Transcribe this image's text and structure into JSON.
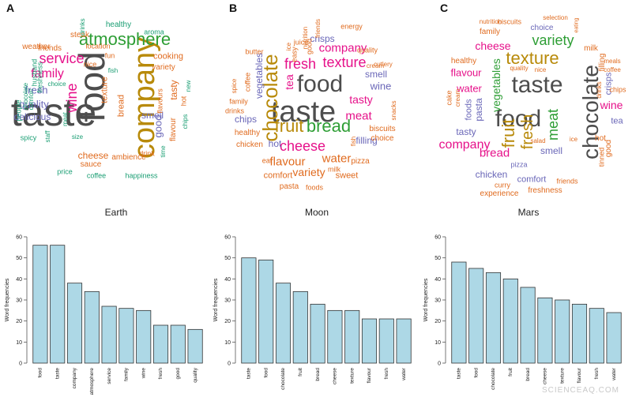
{
  "panel_letters": {
    "a": "A",
    "b": "B",
    "c": "C"
  },
  "planets": {
    "earth": "Earth",
    "moon": "Moon",
    "mars": "Mars"
  },
  "watermark": "SCIENCEAQ.COM",
  "colors": {
    "bar_fill": "#add8e6",
    "bar_stroke": "#333333",
    "green": "#2e9e35",
    "purple": "#6a67b8",
    "gray": "#4d4d4d",
    "pink": "#e6118a",
    "orange": "#e06b1f",
    "gold": "#b88a0a",
    "teal": "#1a9e73"
  },
  "clouds": {
    "earth": [
      {
        "t": "taste",
        "c": "gray"
      },
      {
        "t": "food",
        "c": "gray"
      },
      {
        "t": "company",
        "c": "gold"
      },
      {
        "t": "atmosphere",
        "c": "green"
      },
      {
        "t": "service",
        "c": "pink"
      },
      {
        "t": "family",
        "c": "pink"
      },
      {
        "t": "wine",
        "c": "pink"
      },
      {
        "t": "fresh",
        "c": "purple"
      },
      {
        "t": "quality",
        "c": "purple"
      },
      {
        "t": "delicious",
        "c": "purple"
      },
      {
        "t": "good",
        "c": "purple"
      },
      {
        "t": "smell",
        "c": "purple"
      },
      {
        "t": "tasty",
        "c": "orange"
      },
      {
        "t": "cheese",
        "c": "orange"
      },
      {
        "t": "bread",
        "c": "orange"
      },
      {
        "t": "texture",
        "c": "orange"
      },
      {
        "t": "cooking",
        "c": "orange"
      },
      {
        "t": "variety",
        "c": "orange"
      },
      {
        "t": "weather",
        "c": "orange"
      },
      {
        "t": "friends",
        "c": "orange"
      },
      {
        "t": "steak",
        "c": "orange"
      },
      {
        "t": "location",
        "c": "orange"
      },
      {
        "t": "flavour",
        "c": "orange"
      },
      {
        "t": "flavours",
        "c": "orange"
      },
      {
        "t": "sauce",
        "c": "orange"
      },
      {
        "t": "ambience",
        "c": "orange"
      },
      {
        "t": "drink",
        "c": "orange"
      },
      {
        "t": "fun",
        "c": "orange"
      },
      {
        "t": "nice",
        "c": "orange"
      },
      {
        "t": "hot",
        "c": "orange"
      },
      {
        "t": "healthy",
        "c": "teal"
      },
      {
        "t": "aroma",
        "c": "teal"
      },
      {
        "t": "drinks",
        "c": "teal"
      },
      {
        "t": "fish",
        "c": "teal"
      },
      {
        "t": "husband",
        "c": "teal"
      },
      {
        "t": "freshness",
        "c": "teal"
      },
      {
        "t": "comfort",
        "c": "teal"
      },
      {
        "t": "people",
        "c": "teal"
      },
      {
        "t": "chocolate",
        "c": "teal"
      },
      {
        "t": "choice",
        "c": "teal"
      },
      {
        "t": "meat",
        "c": "teal"
      },
      {
        "t": "size",
        "c": "teal"
      },
      {
        "t": "spicy",
        "c": "teal"
      },
      {
        "t": "staff",
        "c": "teal"
      },
      {
        "t": "time",
        "c": "teal"
      },
      {
        "t": "new",
        "c": "teal"
      },
      {
        "t": "chips",
        "c": "teal"
      },
      {
        "t": "price",
        "c": "teal"
      },
      {
        "t": "coffee",
        "c": "teal"
      },
      {
        "t": "happiness",
        "c": "teal"
      }
    ],
    "moon": [
      {
        "t": "taste",
        "c": "gray"
      },
      {
        "t": "food",
        "c": "gray"
      },
      {
        "t": "chocolate",
        "c": "gold"
      },
      {
        "t": "fruit",
        "c": "gold"
      },
      {
        "t": "bread",
        "c": "green"
      },
      {
        "t": "fresh",
        "c": "pink"
      },
      {
        "t": "texture",
        "c": "pink"
      },
      {
        "t": "company",
        "c": "pink"
      },
      {
        "t": "cheese",
        "c": "pink"
      },
      {
        "t": "meat",
        "c": "pink"
      },
      {
        "t": "tasty",
        "c": "pink"
      },
      {
        "t": "tea",
        "c": "pink"
      },
      {
        "t": "wine",
        "c": "purple"
      },
      {
        "t": "smell",
        "c": "purple"
      },
      {
        "t": "crisps",
        "c": "purple"
      },
      {
        "t": "vegetables",
        "c": "purple"
      },
      {
        "t": "chips",
        "c": "purple"
      },
      {
        "t": "hot",
        "c": "purple"
      },
      {
        "t": "filling",
        "c": "purple"
      },
      {
        "t": "flavour",
        "c": "orange"
      },
      {
        "t": "water",
        "c": "orange"
      },
      {
        "t": "variety",
        "c": "orange"
      },
      {
        "t": "comfort",
        "c": "orange"
      },
      {
        "t": "sweet",
        "c": "orange"
      },
      {
        "t": "healthy",
        "c": "orange"
      },
      {
        "t": "chicken",
        "c": "orange"
      },
      {
        "t": "biscuits",
        "c": "orange"
      },
      {
        "t": "choice",
        "c": "orange"
      },
      {
        "t": "pizza",
        "c": "orange"
      },
      {
        "t": "pasta",
        "c": "orange"
      },
      {
        "t": "foods",
        "c": "orange"
      },
      {
        "t": "milk",
        "c": "orange"
      },
      {
        "t": "eat",
        "c": "orange"
      },
      {
        "t": "family",
        "c": "orange"
      },
      {
        "t": "drinks",
        "c": "orange"
      },
      {
        "t": "butter",
        "c": "orange"
      },
      {
        "t": "coffee",
        "c": "orange"
      },
      {
        "t": "juice",
        "c": "orange"
      },
      {
        "t": "easy",
        "c": "orange"
      },
      {
        "t": "nutrition",
        "c": "orange"
      },
      {
        "t": "good",
        "c": "orange"
      },
      {
        "t": "friends",
        "c": "orange"
      },
      {
        "t": "energy",
        "c": "orange"
      },
      {
        "t": "quality",
        "c": "orange"
      },
      {
        "t": "cream",
        "c": "orange"
      },
      {
        "t": "cutlery",
        "c": "orange"
      },
      {
        "t": "snacks",
        "c": "orange"
      },
      {
        "t": "fish",
        "c": "orange"
      },
      {
        "t": "spice",
        "c": "orange"
      },
      {
        "t": "ice",
        "c": "orange"
      }
    ],
    "mars": [
      {
        "t": "taste",
        "c": "gray"
      },
      {
        "t": "food",
        "c": "gray"
      },
      {
        "t": "chocolate",
        "c": "gray"
      },
      {
        "t": "fruit",
        "c": "gold"
      },
      {
        "t": "fresh",
        "c": "gold"
      },
      {
        "t": "texture",
        "c": "gold"
      },
      {
        "t": "variety",
        "c": "green"
      },
      {
        "t": "meat",
        "c": "green"
      },
      {
        "t": "vegetables",
        "c": "green"
      },
      {
        "t": "company",
        "c": "pink"
      },
      {
        "t": "bread",
        "c": "pink"
      },
      {
        "t": "cheese",
        "c": "pink"
      },
      {
        "t": "water",
        "c": "pink"
      },
      {
        "t": "flavour",
        "c": "pink"
      },
      {
        "t": "wine",
        "c": "pink"
      },
      {
        "t": "tasty",
        "c": "purple"
      },
      {
        "t": "smell",
        "c": "purple"
      },
      {
        "t": "chicken",
        "c": "purple"
      },
      {
        "t": "pasta",
        "c": "purple"
      },
      {
        "t": "foods",
        "c": "purple"
      },
      {
        "t": "crisps",
        "c": "purple"
      },
      {
        "t": "tea",
        "c": "purple"
      },
      {
        "t": "comfort",
        "c": "purple"
      },
      {
        "t": "pizza",
        "c": "purple"
      },
      {
        "t": "choice",
        "c": "purple"
      },
      {
        "t": "healthy",
        "c": "orange"
      },
      {
        "t": "family",
        "c": "orange"
      },
      {
        "t": "filling",
        "c": "orange"
      },
      {
        "t": "milk",
        "c": "orange"
      },
      {
        "t": "hot",
        "c": "orange"
      },
      {
        "t": "good",
        "c": "orange"
      },
      {
        "t": "tinned",
        "c": "orange"
      },
      {
        "t": "chips",
        "c": "orange"
      },
      {
        "t": "biscuits",
        "c": "orange"
      },
      {
        "t": "nutrition",
        "c": "orange"
      },
      {
        "t": "selection",
        "c": "orange"
      },
      {
        "t": "eating",
        "c": "orange"
      },
      {
        "t": "cake",
        "c": "orange"
      },
      {
        "t": "cream",
        "c": "orange"
      },
      {
        "t": "quality",
        "c": "orange"
      },
      {
        "t": "nice",
        "c": "orange"
      },
      {
        "t": "salad",
        "c": "orange"
      },
      {
        "t": "curry",
        "c": "orange"
      },
      {
        "t": "friends",
        "c": "orange"
      },
      {
        "t": "experience",
        "c": "orange"
      },
      {
        "t": "freshness",
        "c": "orange"
      },
      {
        "t": "meals",
        "c": "orange"
      },
      {
        "t": "coffee",
        "c": "orange"
      },
      {
        "t": "drinks",
        "c": "orange"
      },
      {
        "t": "ice",
        "c": "orange"
      }
    ]
  },
  "chart_data": [
    {
      "type": "bar",
      "title": "Earth",
      "categories": [
        "food",
        "taste",
        "company",
        "atmosphere",
        "service",
        "family",
        "wine",
        "fresh",
        "good",
        "quality"
      ],
      "values": [
        56,
        56,
        38,
        34,
        27,
        26,
        25,
        18,
        18,
        16
      ],
      "xlabel": "",
      "ylabel": "Word frequencies",
      "ylim": [
        0,
        60
      ],
      "yticks": [
        0,
        10,
        20,
        30,
        40,
        50,
        60
      ]
    },
    {
      "type": "bar",
      "title": "Moon",
      "categories": [
        "taste",
        "food",
        "chocolate",
        "fruit",
        "bread",
        "cheese",
        "texture",
        "flavour",
        "fresh",
        "water"
      ],
      "values": [
        50,
        49,
        38,
        34,
        28,
        25,
        25,
        21,
        21,
        21
      ],
      "xlabel": "",
      "ylabel": "Word frequencies",
      "ylim": [
        0,
        60
      ],
      "yticks": [
        0,
        10,
        20,
        30,
        40,
        50,
        60
      ]
    },
    {
      "type": "bar",
      "title": "Mars",
      "categories": [
        "taste",
        "food",
        "chocolate",
        "fruit",
        "bread",
        "cheese",
        "texture",
        "flavour",
        "fresh",
        "water"
      ],
      "values": [
        48,
        45,
        43,
        40,
        36,
        31,
        30,
        28,
        26,
        24
      ],
      "xlabel": "",
      "ylabel": "Word frequencies",
      "ylim": [
        0,
        60
      ],
      "yticks": [
        0,
        10,
        20,
        30,
        40,
        50,
        60
      ]
    }
  ]
}
